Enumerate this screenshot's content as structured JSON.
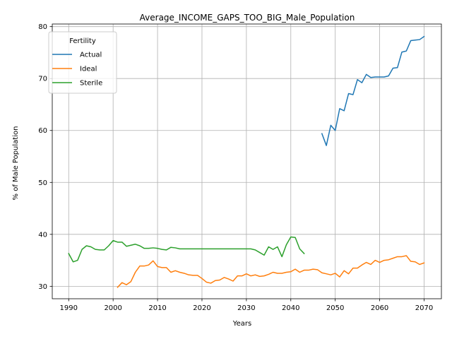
{
  "chart_data": {
    "type": "line",
    "title": "Average_INCOME_GAPS_TOO_BIG_Male_Population",
    "xlabel": "Years",
    "ylabel": "% of Male Population",
    "xlim": [
      1986.3,
      2073.9
    ],
    "ylim": [
      27.6,
      80.5
    ],
    "xticks": [
      1990,
      2000,
      2010,
      2020,
      2030,
      2040,
      2050,
      2060,
      2070
    ],
    "yticks": [
      30,
      40,
      50,
      60,
      70,
      80
    ],
    "grid": true,
    "legend": {
      "title": "Fertility",
      "position": "top-left"
    },
    "series": [
      {
        "name": "Actual",
        "color": "#1f77b4",
        "points": [
          [
            2047,
            59.4
          ],
          [
            2048,
            57.1
          ],
          [
            2049,
            61.0
          ],
          [
            2050,
            60.0
          ],
          [
            2051,
            64.2
          ],
          [
            2052,
            63.8
          ],
          [
            2053,
            67.1
          ],
          [
            2054,
            66.9
          ],
          [
            2055,
            69.8
          ],
          [
            2056,
            69.2
          ],
          [
            2057,
            70.8
          ],
          [
            2058,
            70.2
          ],
          [
            2059,
            70.3
          ],
          [
            2060,
            70.3
          ],
          [
            2061,
            70.3
          ],
          [
            2062,
            70.5
          ],
          [
            2063,
            72.0
          ],
          [
            2064,
            72.1
          ],
          [
            2065,
            75.1
          ],
          [
            2066,
            75.3
          ],
          [
            2067,
            77.3
          ],
          [
            2068,
            77.4
          ],
          [
            2069,
            77.5
          ],
          [
            2070,
            78.1
          ]
        ]
      },
      {
        "name": "Ideal",
        "color": "#ff7f0e",
        "points": [
          [
            2001,
            29.8
          ],
          [
            2002,
            30.7
          ],
          [
            2003,
            30.3
          ],
          [
            2004,
            30.9
          ],
          [
            2005,
            32.7
          ],
          [
            2006,
            33.9
          ],
          [
            2007,
            33.9
          ],
          [
            2008,
            34.1
          ],
          [
            2009,
            34.9
          ],
          [
            2010,
            33.8
          ],
          [
            2011,
            33.6
          ],
          [
            2012,
            33.6
          ],
          [
            2013,
            32.7
          ],
          [
            2014,
            33.0
          ],
          [
            2015,
            32.7
          ],
          [
            2016,
            32.5
          ],
          [
            2017,
            32.2
          ],
          [
            2018,
            32.1
          ],
          [
            2019,
            32.1
          ],
          [
            2020,
            31.5
          ],
          [
            2021,
            30.8
          ],
          [
            2022,
            30.6
          ],
          [
            2023,
            31.1
          ],
          [
            2024,
            31.2
          ],
          [
            2025,
            31.7
          ],
          [
            2026,
            31.4
          ],
          [
            2027,
            31.0
          ],
          [
            2028,
            32.0
          ],
          [
            2029,
            32.0
          ],
          [
            2030,
            32.4
          ],
          [
            2031,
            32.0
          ],
          [
            2032,
            32.2
          ],
          [
            2033,
            31.9
          ],
          [
            2034,
            32.0
          ],
          [
            2035,
            32.3
          ],
          [
            2036,
            32.7
          ],
          [
            2037,
            32.5
          ],
          [
            2038,
            32.5
          ],
          [
            2039,
            32.7
          ],
          [
            2040,
            32.8
          ],
          [
            2041,
            33.3
          ],
          [
            2042,
            32.7
          ],
          [
            2043,
            33.1
          ],
          [
            2044,
            33.1
          ],
          [
            2045,
            33.3
          ],
          [
            2046,
            33.2
          ],
          [
            2047,
            32.6
          ],
          [
            2048,
            32.4
          ],
          [
            2049,
            32.2
          ],
          [
            2050,
            32.5
          ],
          [
            2051,
            31.8
          ],
          [
            2052,
            33.0
          ],
          [
            2053,
            32.4
          ],
          [
            2054,
            33.5
          ],
          [
            2055,
            33.5
          ],
          [
            2056,
            34.1
          ],
          [
            2057,
            34.6
          ],
          [
            2058,
            34.2
          ],
          [
            2059,
            35.0
          ],
          [
            2060,
            34.6
          ],
          [
            2061,
            35.0
          ],
          [
            2062,
            35.1
          ],
          [
            2063,
            35.4
          ],
          [
            2064,
            35.7
          ],
          [
            2065,
            35.7
          ],
          [
            2066,
            35.9
          ],
          [
            2067,
            34.8
          ],
          [
            2068,
            34.7
          ],
          [
            2069,
            34.2
          ],
          [
            2070,
            34.5
          ]
        ]
      },
      {
        "name": "Sterile",
        "color": "#2ca02c",
        "points": [
          [
            1990,
            36.3
          ],
          [
            1991,
            34.7
          ],
          [
            1992,
            35.0
          ],
          [
            1993,
            37.1
          ],
          [
            1994,
            37.8
          ],
          [
            1995,
            37.6
          ],
          [
            1996,
            37.1
          ],
          [
            1997,
            37.0
          ],
          [
            1998,
            37.0
          ],
          [
            1999,
            37.8
          ],
          [
            2000,
            38.8
          ],
          [
            2001,
            38.5
          ],
          [
            2002,
            38.5
          ],
          [
            2003,
            37.7
          ],
          [
            2004,
            37.9
          ],
          [
            2005,
            38.1
          ],
          [
            2006,
            37.8
          ],
          [
            2007,
            37.3
          ],
          [
            2008,
            37.3
          ],
          [
            2009,
            37.4
          ],
          [
            2010,
            37.3
          ],
          [
            2011,
            37.1
          ],
          [
            2012,
            37.0
          ],
          [
            2013,
            37.5
          ],
          [
            2014,
            37.4
          ],
          [
            2015,
            37.2
          ],
          [
            2016,
            37.2
          ],
          [
            2017,
            37.2
          ],
          [
            2018,
            37.2
          ],
          [
            2019,
            37.2
          ],
          [
            2020,
            37.2
          ],
          [
            2021,
            37.2
          ],
          [
            2022,
            37.2
          ],
          [
            2023,
            37.2
          ],
          [
            2024,
            37.2
          ],
          [
            2025,
            37.2
          ],
          [
            2026,
            37.2
          ],
          [
            2027,
            37.2
          ],
          [
            2028,
            37.2
          ],
          [
            2029,
            37.2
          ],
          [
            2030,
            37.2
          ],
          [
            2031,
            37.2
          ],
          [
            2032,
            37.0
          ],
          [
            2033,
            36.5
          ],
          [
            2034,
            36.0
          ],
          [
            2035,
            37.6
          ],
          [
            2036,
            37.1
          ],
          [
            2037,
            37.6
          ],
          [
            2038,
            35.7
          ],
          [
            2039,
            38.0
          ],
          [
            2040,
            39.5
          ],
          [
            2041,
            39.4
          ],
          [
            2042,
            37.2
          ],
          [
            2043,
            36.3
          ]
        ]
      }
    ]
  }
}
